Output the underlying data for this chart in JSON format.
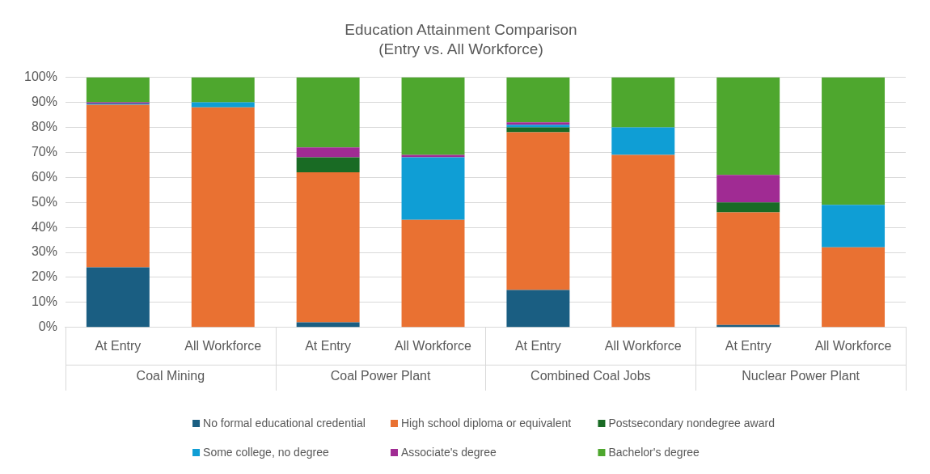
{
  "chart_data": {
    "type": "bar",
    "title": "Education Attainment Comparison",
    "subtitle": "(Entry vs. All Workforce)",
    "categories": [
      "At Entry",
      "All Workforce",
      "At Entry",
      "All Workforce",
      "At Entry",
      "All Workforce",
      "At Entry",
      "All Workforce"
    ],
    "annotations": [
      "Coal Mining",
      "Coal Power Plant",
      "Combined Coal Jobs",
      "Nuclear Power Plant"
    ],
    "stacked": true,
    "ylim": [
      0,
      100
    ],
    "yticks": [
      {
        "value": 0,
        "label": "0%"
      },
      {
        "value": 10,
        "label": "10%"
      },
      {
        "value": 20,
        "label": "20%"
      },
      {
        "value": 30,
        "label": "30%"
      },
      {
        "value": 40,
        "label": "40%"
      },
      {
        "value": 50,
        "label": "50%"
      },
      {
        "value": 60,
        "label": "60%"
      },
      {
        "value": 70,
        "label": "70%"
      },
      {
        "value": 80,
        "label": "80%"
      },
      {
        "value": 90,
        "label": "90%"
      },
      {
        "value": 100,
        "label": "100%"
      }
    ],
    "grid": "y",
    "legend": "bottom",
    "series": [
      {
        "name": "No formal educational credential",
        "color": "#1a5e82",
        "values": [
          24,
          0,
          2,
          0,
          15,
          0,
          1,
          0
        ]
      },
      {
        "name": "High school diploma or equivalent",
        "color": "#e97132",
        "values": [
          65,
          88,
          60,
          43,
          63,
          69,
          45,
          32
        ]
      },
      {
        "name": "Postsecondary nondegree award",
        "color": "#196b24",
        "values": [
          0,
          0,
          6,
          0,
          2,
          0,
          4,
          0
        ]
      },
      {
        "name": "Some college, no degree",
        "color": "#0f9ed5",
        "values": [
          0.5,
          2,
          0,
          25,
          1,
          11,
          0,
          17
        ]
      },
      {
        "name": "Associate's degree",
        "color": "#a02b93",
        "values": [
          0.5,
          0,
          4,
          1,
          1,
          0,
          11,
          0
        ]
      },
      {
        "name": "Bachelor's degree",
        "color": "#4ea72e",
        "values": [
          10,
          10,
          28,
          31,
          18,
          20,
          39,
          51
        ]
      }
    ]
  }
}
